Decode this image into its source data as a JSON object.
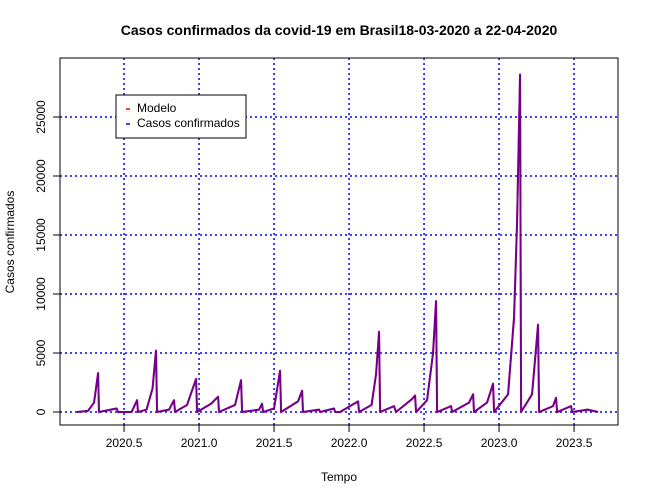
{
  "chart_data": {
    "type": "line",
    "title": "Casos confirmados da covid-19 em Brasil18-03-2020 a 22-04-2020",
    "xlabel": "Tempo",
    "ylabel": "Casos confirmados",
    "x": [
      2020.187,
      2020.26,
      2020.3,
      2020.327,
      2020.333,
      2020.45,
      2020.46,
      2020.55,
      2020.587,
      2020.593,
      2020.65,
      2020.69,
      2020.713,
      2020.72,
      2020.8,
      2020.833,
      2020.84,
      2020.92,
      2020.98,
      2020.987,
      2021.08,
      2021.127,
      2021.133,
      2021.24,
      2021.28,
      2021.287,
      2021.4,
      2021.42,
      2021.427,
      2021.5,
      2021.54,
      2021.547,
      2021.66,
      2021.687,
      2021.693,
      2021.8,
      2021.807,
      2021.9,
      2021.907,
      2021.94,
      2022.06,
      2022.067,
      2022.15,
      2022.18,
      2022.2,
      2022.207,
      2022.3,
      2022.313,
      2022.42,
      2022.44,
      2022.447,
      2022.52,
      2022.56,
      2022.58,
      2022.587,
      2022.68,
      2022.687,
      2022.8,
      2022.827,
      2022.833,
      2022.92,
      2022.96,
      2022.967,
      2023.06,
      2023.1,
      2023.12,
      2023.14,
      2023.147,
      2023.22,
      2023.26,
      2023.267,
      2023.36,
      2023.38,
      2023.387,
      2023.48,
      2023.487,
      2023.59,
      2023.66
    ],
    "series": [
      {
        "name": "Modelo",
        "color": "#ff0000",
        "values": [
          0,
          100,
          800,
          3300,
          0,
          300,
          0,
          0,
          1000,
          0,
          200,
          2000,
          5200,
          0,
          200,
          1000,
          0,
          600,
          2800,
          0,
          700,
          1300,
          0,
          600,
          2700,
          0,
          200,
          700,
          0,
          300,
          3500,
          0,
          900,
          1800,
          0,
          200,
          0,
          300,
          0,
          0,
          900,
          0,
          600,
          3200,
          6800,
          0,
          500,
          0,
          1100,
          1400,
          0,
          1000,
          5000,
          9400,
          0,
          500,
          0,
          800,
          1500,
          0,
          800,
          2400,
          0,
          1500,
          8000,
          16000,
          28600,
          0,
          1500,
          7400,
          0,
          500,
          1200,
          0,
          500,
          0,
          200,
          0
        ]
      },
      {
        "name": "Casos confirmados",
        "color": "#0000ff",
        "values": [
          0,
          100,
          800,
          3300,
          0,
          300,
          0,
          0,
          1000,
          0,
          200,
          2000,
          5200,
          0,
          200,
          1000,
          0,
          600,
          2800,
          0,
          700,
          1300,
          0,
          600,
          2700,
          0,
          200,
          700,
          0,
          300,
          3500,
          0,
          900,
          1800,
          0,
          200,
          0,
          300,
          0,
          0,
          900,
          0,
          600,
          3200,
          6800,
          0,
          500,
          0,
          1100,
          1400,
          0,
          1000,
          5000,
          9400,
          0,
          500,
          0,
          800,
          1500,
          0,
          800,
          2400,
          0,
          1500,
          8000,
          16000,
          28600,
          0,
          1500,
          7400,
          0,
          500,
          1200,
          0,
          500,
          0,
          200,
          0
        ]
      }
    ],
    "xlim": [
      2020.073,
      2023.793
    ],
    "ylim": [
      -1100,
      30000
    ],
    "xticks": [
      {
        "value": 2020.5,
        "label": "2020.5"
      },
      {
        "value": 2021.0,
        "label": "2021.0"
      },
      {
        "value": 2021.5,
        "label": "2021.5"
      },
      {
        "value": 2022.0,
        "label": "2022.0"
      },
      {
        "value": 2022.5,
        "label": "2022.5"
      },
      {
        "value": 2023.0,
        "label": "2023.0"
      },
      {
        "value": 2023.5,
        "label": "2023.5"
      }
    ],
    "yticks": [
      0,
      5000,
      10000,
      15000,
      20000,
      25000
    ],
    "grid": true,
    "grid_color": "#0000ff",
    "legend": "top-left"
  }
}
